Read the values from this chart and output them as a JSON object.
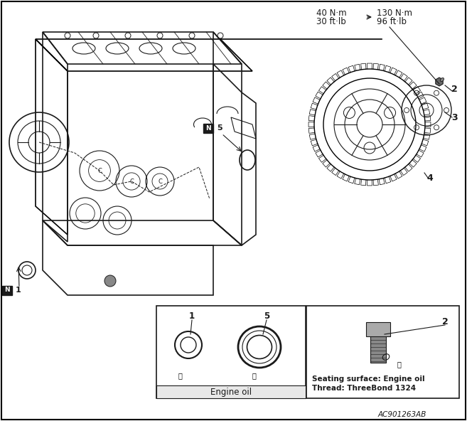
{
  "title": "AC901263AB",
  "background_color": "#ffffff",
  "border_color": "#000000",
  "text_color": "#000000",
  "torque_left_line1": "40 N·m",
  "torque_left_line2": "30 ft·lb",
  "torque_right_line1": "130 N·m",
  "torque_right_line2": "96 ft·lb",
  "arrow_text": "→",
  "label_N1": "N 1",
  "label_N5": "N 5",
  "label_2_top": "2",
  "label_3": "3",
  "label_4": "4",
  "label_1_box": "1",
  "label_5_box": "5",
  "label_2_box": "2",
  "box_left_caption": "Engine oil",
  "box_right_line1": "Seating surface: Engine oil",
  "box_right_line2": "Thread: ThreeBond 1324",
  "figsize": [
    6.57,
    5.92
  ],
  "dpi": 100
}
